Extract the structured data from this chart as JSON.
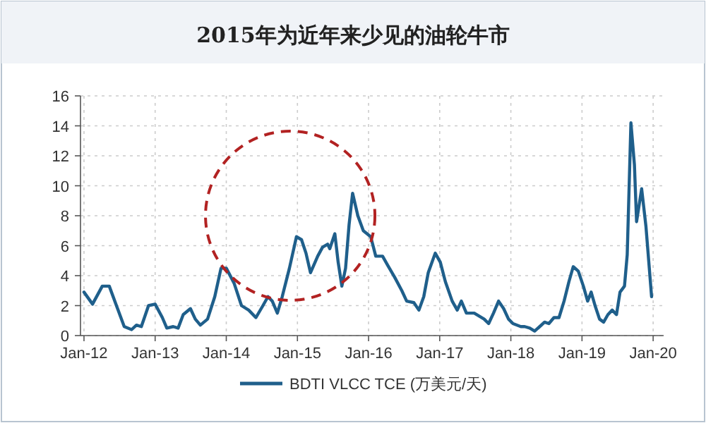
{
  "chart_data": {
    "type": "line",
    "title": "2015年为近年来少见的油轮牛市",
    "x": [
      "2012-01-01",
      "2012-02-14",
      "2012-04-04",
      "2012-05-10",
      "2012-06-16",
      "2012-07-26",
      "2012-09-02",
      "2012-09-27",
      "2012-10-22",
      "2012-11-28",
      "2013-01-01",
      "2013-02-07",
      "2013-03-02",
      "2013-04-04",
      "2013-04-29",
      "2013-05-25",
      "2013-07-01",
      "2013-07-26",
      "2013-08-21",
      "2013-09-27",
      "2013-11-03",
      "2013-12-05",
      "2014-01-01",
      "2014-02-10",
      "2014-03-20",
      "2014-04-26",
      "2014-06-02",
      "2014-07-08",
      "2014-08-03",
      "2014-08-25",
      "2014-09-20",
      "2014-10-15",
      "2014-11-21",
      "2014-12-27",
      "2015-01-22",
      "2015-02-14",
      "2015-03-09",
      "2015-04-15",
      "2015-05-10",
      "2015-06-05",
      "2015-06-16",
      "2015-07-12",
      "2015-07-29",
      "2015-08-17",
      "2015-09-05",
      "2015-09-23",
      "2015-10-11",
      "2015-11-07",
      "2015-12-05",
      "2016-01-12",
      "2016-02-07",
      "2016-03-13",
      "2016-04-08",
      "2016-05-14",
      "2016-06-20",
      "2016-07-15",
      "2016-08-21",
      "2016-09-16",
      "2016-10-11",
      "2016-11-03",
      "2016-12-09",
      "2017-01-04",
      "2017-01-30",
      "2017-03-06",
      "2017-04-01",
      "2017-04-22",
      "2017-05-18",
      "2017-06-27",
      "2017-08-17",
      "2017-09-09",
      "2017-10-04",
      "2017-10-30",
      "2017-11-25",
      "2017-12-20",
      "2018-01-12",
      "2018-02-21",
      "2018-03-13",
      "2018-04-08",
      "2018-05-03",
      "2018-05-29",
      "2018-06-23",
      "2018-07-15",
      "2018-08-10",
      "2018-09-05",
      "2018-10-01",
      "2018-10-26",
      "2018-11-17",
      "2018-12-13",
      "2019-01-08",
      "2019-01-30",
      "2019-02-17",
      "2019-03-09",
      "2019-04-01",
      "2019-04-22",
      "2019-05-14",
      "2019-06-05",
      "2019-06-27",
      "2019-07-15",
      "2019-08-07",
      "2019-08-21",
      "2019-09-09",
      "2019-09-27",
      "2019-10-08",
      "2019-11-03",
      "2019-11-25",
      "2019-12-24"
    ],
    "series": [
      {
        "name": "BDTI VLCC TCE (万美元/天)",
        "color": "#1f5f8b",
        "values": [
          2.9,
          2.1,
          3.3,
          3.3,
          2.0,
          0.6,
          0.4,
          0.7,
          0.6,
          2.0,
          2.1,
          1.2,
          0.5,
          0.6,
          0.5,
          1.4,
          1.8,
          1.1,
          0.7,
          1.1,
          2.6,
          4.5,
          4.5,
          3.5,
          2.0,
          1.7,
          1.2,
          2.0,
          2.6,
          2.3,
          1.5,
          2.6,
          4.5,
          6.6,
          6.4,
          5.5,
          4.2,
          5.3,
          5.9,
          6.1,
          5.8,
          6.8,
          4.9,
          3.3,
          4.5,
          7.4,
          9.5,
          8.0,
          7.0,
          6.6,
          5.3,
          5.3,
          4.7,
          3.9,
          3.0,
          2.3,
          2.2,
          1.7,
          2.6,
          4.2,
          5.5,
          4.9,
          3.6,
          2.3,
          1.7,
          2.3,
          1.5,
          1.5,
          1.1,
          0.8,
          1.5,
          2.3,
          1.8,
          1.1,
          0.8,
          0.6,
          0.6,
          0.5,
          0.3,
          0.6,
          0.9,
          0.8,
          1.2,
          1.2,
          2.3,
          3.6,
          4.6,
          4.3,
          3.3,
          2.3,
          2.9,
          2.0,
          1.1,
          0.9,
          1.4,
          1.7,
          1.4,
          2.9,
          3.3,
          5.4,
          14.2,
          11.4,
          7.6,
          9.8,
          7.3,
          2.6
        ]
      }
    ],
    "xlim": [
      "2011-12-14",
      "2020-02-24"
    ],
    "xticks": [
      {
        "value": "2012-01-01",
        "label": "Jan-12"
      },
      {
        "value": "2013-01-01",
        "label": "Jan-13"
      },
      {
        "value": "2014-01-01",
        "label": "Jan-14"
      },
      {
        "value": "2015-01-01",
        "label": "Jan-15"
      },
      {
        "value": "2016-01-01",
        "label": "Jan-16"
      },
      {
        "value": "2017-01-01",
        "label": "Jan-17"
      },
      {
        "value": "2018-01-01",
        "label": "Jan-18"
      },
      {
        "value": "2019-01-01",
        "label": "Jan-19"
      },
      {
        "value": "2020-01-01",
        "label": "Jan-20"
      }
    ],
    "ylim": [
      0,
      16
    ],
    "yticks": [
      0,
      2,
      4,
      6,
      8,
      10,
      12,
      14,
      16
    ],
    "grid": true,
    "legend": "bottom"
  }
}
